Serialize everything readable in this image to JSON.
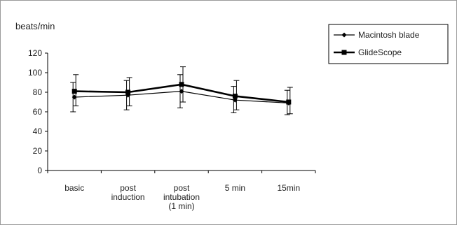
{
  "chart_data": {
    "type": "line",
    "ylabel": "beats/min",
    "xlabel": "",
    "categories": [
      [
        "basic"
      ],
      [
        "post",
        "induction"
      ],
      [
        "post",
        "intubation",
        "(1 min)"
      ],
      [
        "5 min"
      ],
      [
        "15min"
      ]
    ],
    "ylim": [
      0,
      120
    ],
    "yticks": [
      0,
      20,
      40,
      60,
      80,
      100,
      120
    ],
    "grid": false,
    "legend_position": "top-right",
    "series": [
      {
        "name": "Macintosh blade",
        "marker": "diamond",
        "line_weight": "thin",
        "color": "#000000",
        "values": [
          75,
          77,
          81,
          72,
          69
        ],
        "error_low": [
          60,
          62,
          64,
          59,
          57
        ],
        "error_high": [
          90,
          92,
          98,
          86,
          82
        ]
      },
      {
        "name": "GlideScope",
        "marker": "square",
        "line_weight": "thick",
        "color": "#000000",
        "values": [
          81,
          80,
          88,
          76,
          70
        ],
        "error_low": [
          66,
          66,
          70,
          62,
          58
        ],
        "error_high": [
          98,
          95,
          106,
          92,
          85
        ]
      }
    ]
  }
}
